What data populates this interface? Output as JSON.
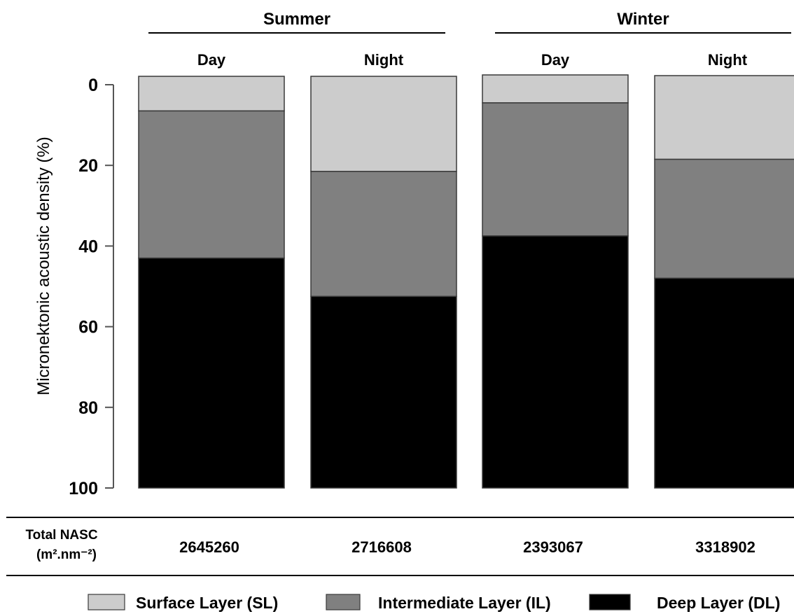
{
  "chart_data": {
    "type": "bar",
    "stacked": true,
    "groups": [
      {
        "label": "Summer",
        "categories": [
          "Day",
          "Night"
        ]
      },
      {
        "label": "Winter",
        "categories": [
          "Day",
          "Night"
        ]
      }
    ],
    "categories": [
      "Day",
      "Night",
      "Day",
      "Night"
    ],
    "series": [
      {
        "name": "Surface Layer (SL)",
        "values": [
          6.5,
          21.5,
          4.5,
          18.5
        ],
        "color": "#cccccc"
      },
      {
        "name": "Intermediate Layer (IL)",
        "values": [
          36.5,
          31.0,
          33.0,
          29.5
        ],
        "color": "#808080"
      },
      {
        "name": "Deep Layer (DL)",
        "values": [
          57.0,
          47.5,
          62.5,
          52.0
        ],
        "color": "#000000"
      }
    ],
    "ylabel": "Micronektonic acoustic density  (%)",
    "yticks": [
      0,
      20,
      40,
      60,
      80,
      100
    ],
    "ylim": [
      0,
      100
    ],
    "y_inverted": true,
    "nasc": {
      "label_line1": "Total NASC",
      "label_line2": "(m².nm⁻²)",
      "values": [
        "2645260",
        "2716608",
        "2393067",
        "3318902"
      ]
    },
    "legend_position": "bottom"
  }
}
